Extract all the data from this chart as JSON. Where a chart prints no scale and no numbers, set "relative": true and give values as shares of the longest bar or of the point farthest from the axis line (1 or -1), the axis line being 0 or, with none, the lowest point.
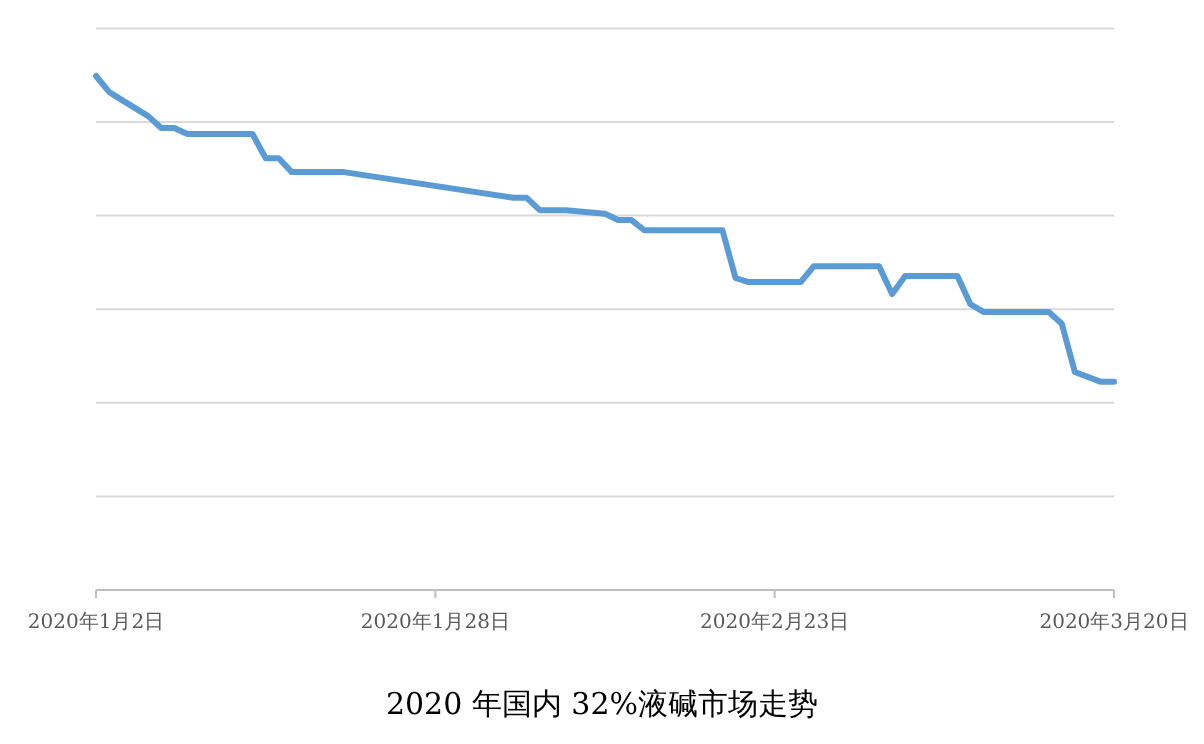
{
  "chart_data": {
    "type": "line",
    "title": "2020 年国内 32%液碱市场走势",
    "relative": true,
    "x": [
      "2020-01-02",
      "2020-01-03",
      "2020-01-04",
      "2020-01-06",
      "2020-01-07",
      "2020-01-08",
      "2020-01-09",
      "2020-01-14",
      "2020-01-15",
      "2020-01-16",
      "2020-01-17",
      "2020-01-21",
      "2020-02-03",
      "2020-02-04",
      "2020-02-05",
      "2020-02-07",
      "2020-02-10",
      "2020-02-11",
      "2020-02-12",
      "2020-02-13",
      "2020-02-19",
      "2020-02-20",
      "2020-02-21",
      "2020-02-25",
      "2020-02-26",
      "2020-03-02",
      "2020-03-03",
      "2020-03-04",
      "2020-03-08",
      "2020-03-09",
      "2020-03-10",
      "2020-03-15",
      "2020-03-16",
      "2020-03-17",
      "2020-03-19",
      "2020-03-20"
    ],
    "series": [
      {
        "color": "#5b9bd5",
        "values": [
          1,
          0.969,
          0.953,
          0.922,
          0.899,
          0.899,
          0.887,
          0.887,
          0.84,
          0.84,
          0.813,
          0.813,
          0.763,
          0.763,
          0.739,
          0.739,
          0.732,
          0.72,
          0.72,
          0.7,
          0.7,
          0.607,
          0.599,
          0.599,
          0.63,
          0.63,
          0.576,
          0.611,
          0.611,
          0.556,
          0.541,
          0.541,
          0.518,
          0.424,
          0.405,
          0.405
        ]
      }
    ],
    "xlim": [
      "2020-01-02",
      "2020-03-20"
    ],
    "xticks": [
      {
        "value": "2020-01-02",
        "label": "2020年1月2日"
      },
      {
        "value": "2020-01-28",
        "label": "2020年1月28日"
      },
      {
        "value": "2020-02-23",
        "label": "2020年2月23日"
      },
      {
        "value": "2020-03-20",
        "label": "2020年3月20日"
      }
    ],
    "grid": "y",
    "marker": "none",
    "line_style": "solid"
  }
}
